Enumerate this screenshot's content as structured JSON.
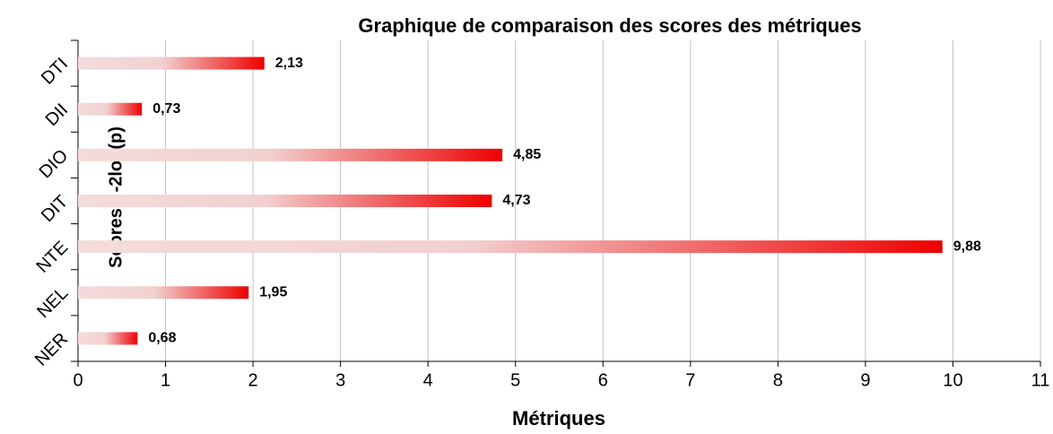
{
  "chart_data": {
    "type": "barh",
    "title": "Graphique de comparaison des scores des métriques",
    "xlabel": "Métriques",
    "ylabel": "Scores : -2log(p)",
    "categories": [
      "DTI",
      "DII",
      "DIO",
      "DIT",
      "NTE",
      "NEL",
      "NER"
    ],
    "values": [
      2.13,
      0.73,
      4.85,
      4.73,
      9.88,
      1.95,
      0.68
    ],
    "value_labels": [
      "2,13",
      "0,73",
      "4,85",
      "4,73",
      "9,88",
      "1,95",
      "0,68"
    ],
    "color": "#ee0000",
    "xlim": [
      0,
      11
    ],
    "xticks": [
      0,
      1,
      2,
      3,
      4,
      5,
      6,
      7,
      8,
      9,
      10,
      11
    ],
    "grid": true
  }
}
